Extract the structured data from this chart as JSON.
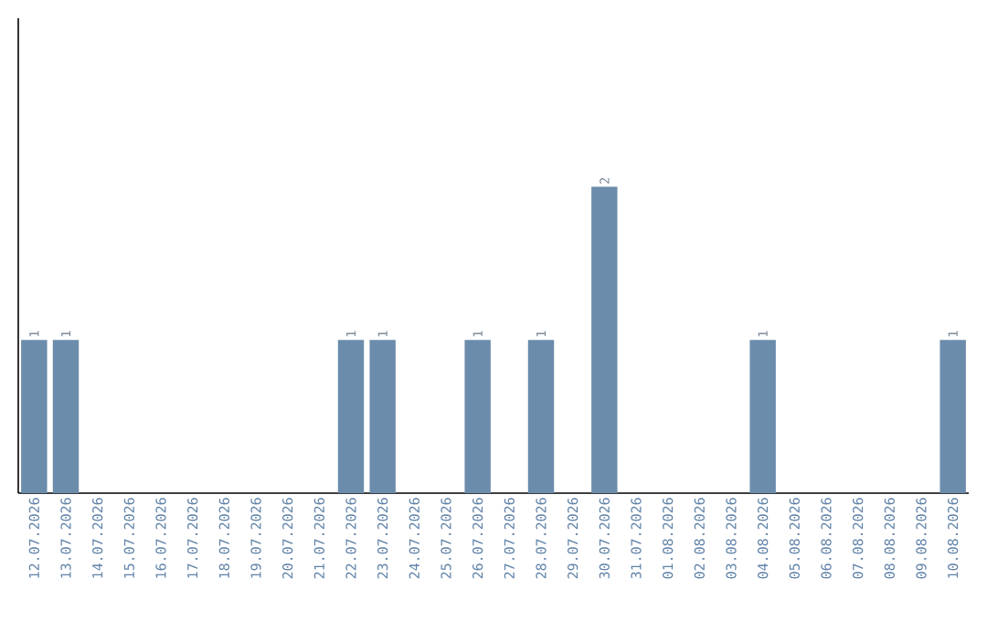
{
  "chart_data": {
    "type": "bar",
    "color": "#6b8cab",
    "categories": [
      "12.07.2026",
      "13.07.2026",
      "14.07.2026",
      "15.07.2026",
      "16.07.2026",
      "17.07.2026",
      "18.07.2026",
      "19.07.2026",
      "20.07.2026",
      "21.07.2026",
      "22.07.2026",
      "23.07.2026",
      "24.07.2026",
      "25.07.2026",
      "26.07.2026",
      "27.07.2026",
      "28.07.2026",
      "29.07.2026",
      "30.07.2026",
      "31.07.2026",
      "01.08.2026",
      "02.08.2026",
      "03.08.2026",
      "04.08.2026",
      "05.08.2026",
      "06.08.2026",
      "07.08.2026",
      "08.08.2026",
      "09.08.2026",
      "10.08.2026"
    ],
    "values": [
      1,
      1,
      0,
      0,
      0,
      0,
      0,
      0,
      0,
      0,
      1,
      1,
      0,
      0,
      1,
      0,
      1,
      0,
      2,
      0,
      0,
      0,
      0,
      1,
      0,
      0,
      0,
      0,
      0,
      1
    ],
    "value_labels": [
      "1",
      "1",
      null,
      null,
      null,
      null,
      null,
      null,
      null,
      null,
      "1",
      "1",
      null,
      null,
      "1",
      null,
      "1",
      null,
      "2",
      null,
      null,
      null,
      null,
      "1",
      null,
      null,
      null,
      null,
      null,
      "1"
    ]
  }
}
